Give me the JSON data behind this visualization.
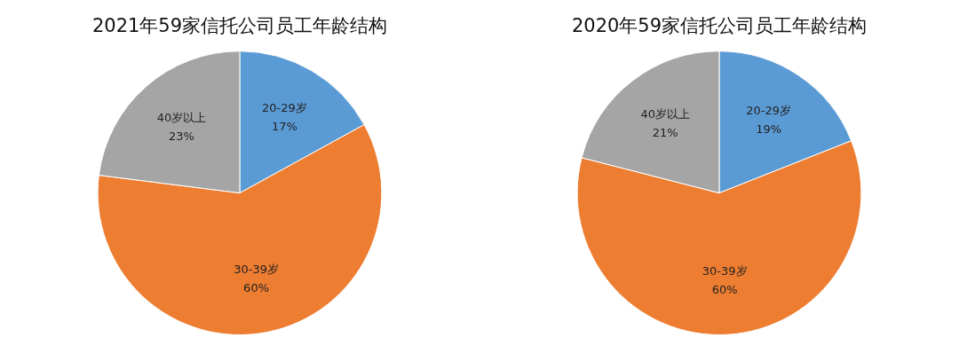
{
  "chart_data": [
    {
      "type": "pie",
      "title": "2021年59家信托公司员工年龄结构",
      "categories": [
        "20-29岁",
        "30-39岁",
        "40岁以上"
      ],
      "values": [
        17,
        60,
        23
      ],
      "colors": [
        "#5b9bd5",
        "#ed7d31",
        "#a5a5a5"
      ],
      "value_labels": [
        "17%",
        "60%",
        "23%"
      ],
      "legend": false
    },
    {
      "type": "pie",
      "title": "2020年59家信托公司员工年龄结构",
      "categories": [
        "20-29岁",
        "30-39岁",
        "40岁以上"
      ],
      "values": [
        19,
        60,
        21
      ],
      "colors": [
        "#5b9bd5",
        "#ed7d31",
        "#a5a5a5"
      ],
      "value_labels": [
        "19%",
        "60%",
        "21%"
      ],
      "legend": false
    }
  ]
}
